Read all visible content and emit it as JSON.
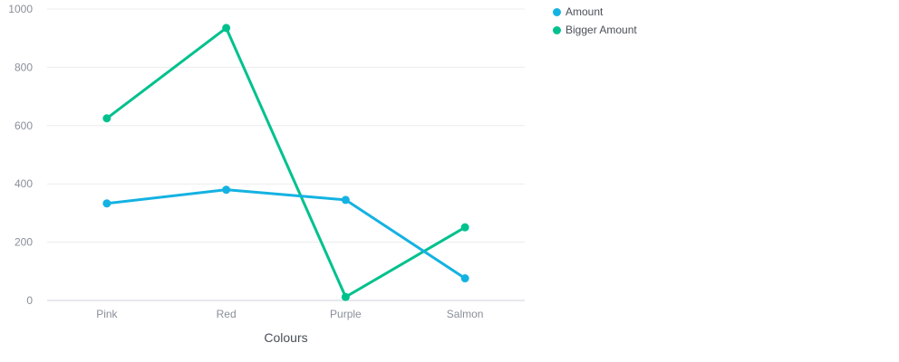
{
  "chart_data": {
    "type": "line",
    "categories": [
      "Pink",
      "Red",
      "Purple",
      "Salmon"
    ],
    "series": [
      {
        "name": "Amount",
        "color": "#14b2e2",
        "values": [
          333,
          380,
          345,
          76
        ]
      },
      {
        "name": "Bigger Amount",
        "color": "#00c18d",
        "values": [
          625,
          935,
          12,
          251
        ]
      }
    ],
    "title": "",
    "xlabel": "Colours",
    "ylabel": "",
    "ylim": [
      0,
      1000
    ],
    "yticks": [
      0,
      200,
      400,
      600,
      800,
      1000
    ],
    "grid": true,
    "legend_position": "top-right"
  }
}
